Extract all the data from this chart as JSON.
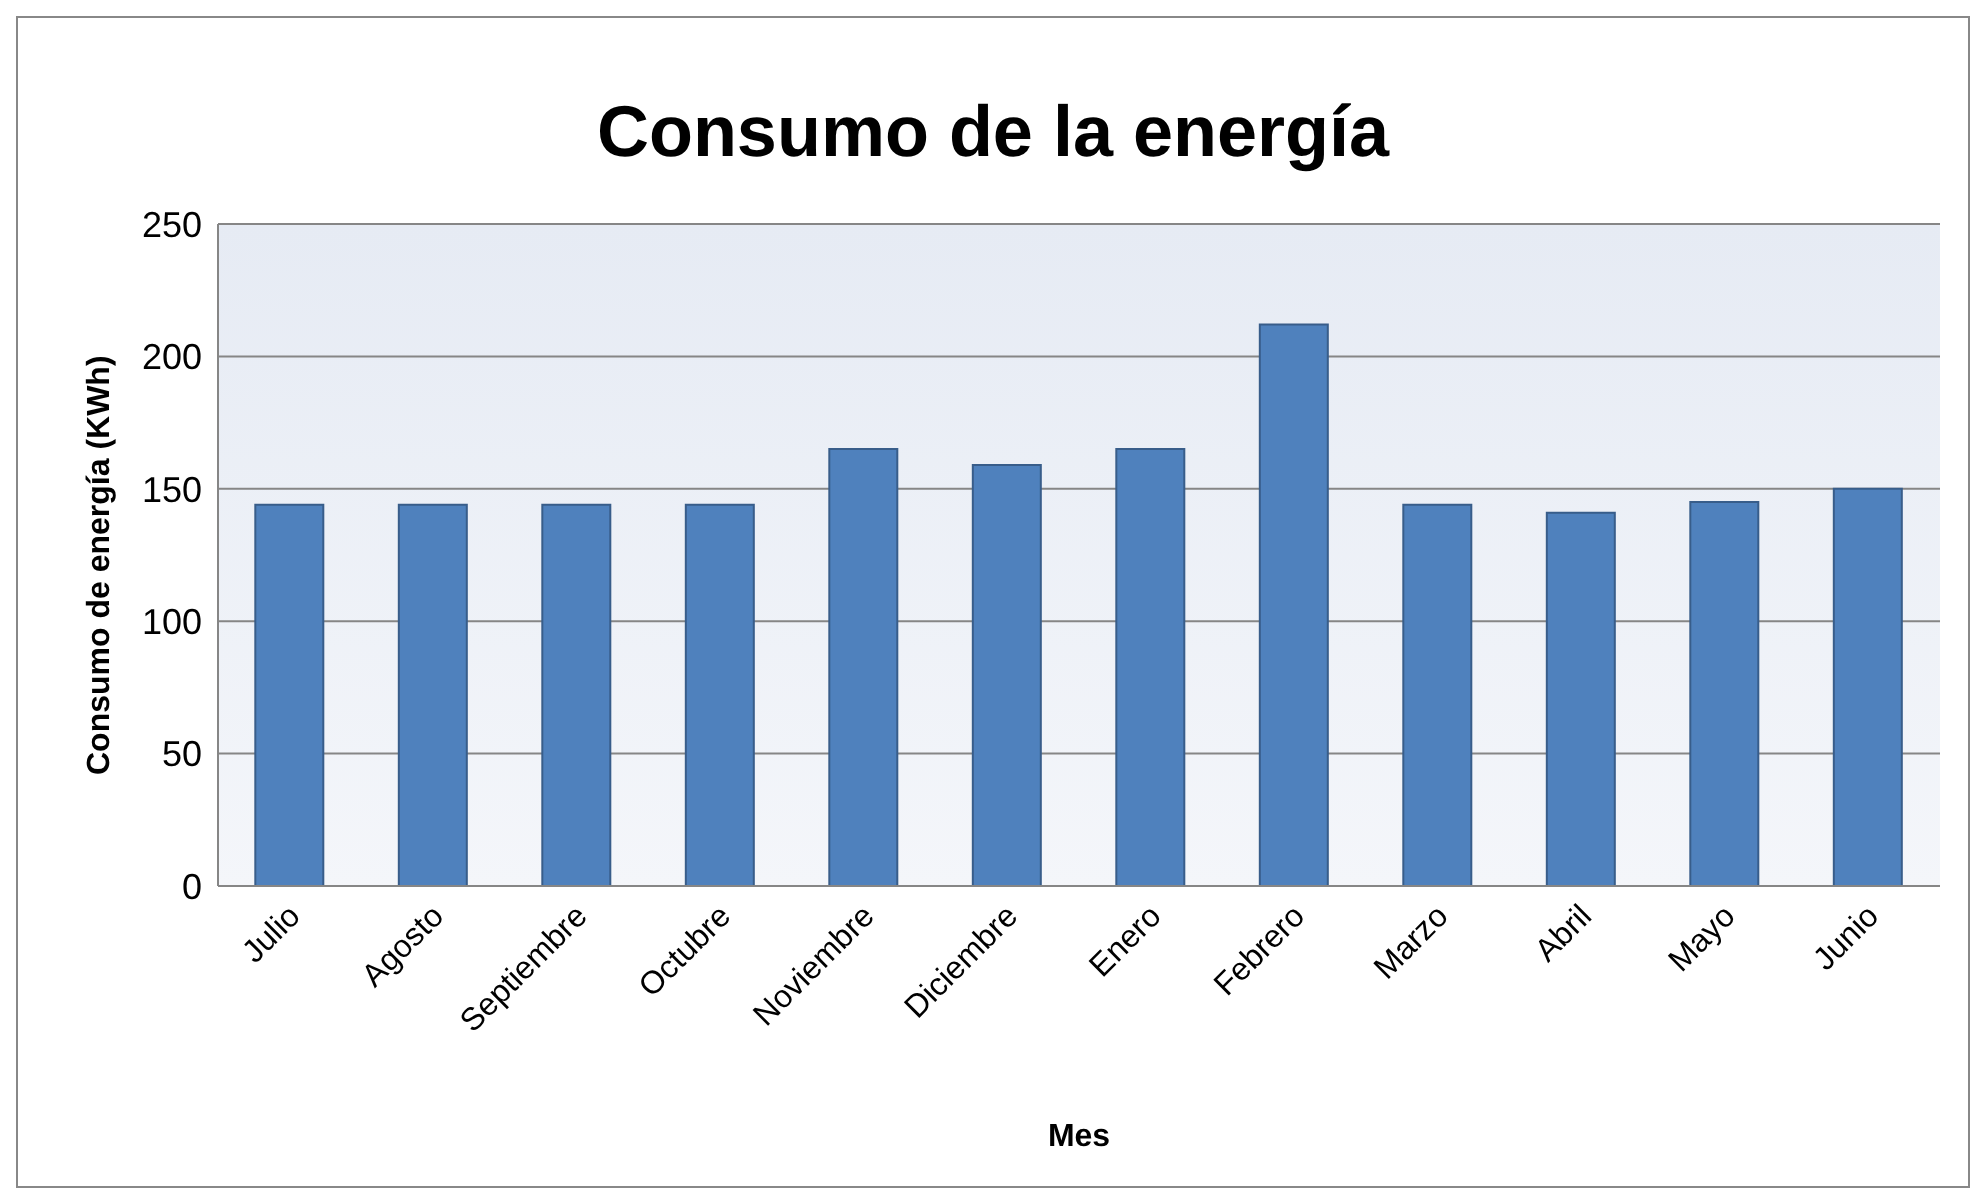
{
  "chart_data": {
    "type": "bar",
    "title": "Consumo de la energía",
    "xlabel": "Mes",
    "ylabel": "Consumo de energía (KWh)",
    "categories": [
      "Julio",
      "Agosto",
      "Septiembre",
      "Octubre",
      "Noviembre",
      "Diciembre",
      "Enero",
      "Febrero",
      "Marzo",
      "Abril",
      "Mayo",
      "Junio"
    ],
    "values": [
      144,
      144,
      144,
      144,
      165,
      159,
      165,
      212,
      144,
      141,
      145,
      150
    ],
    "color": "#4f81bd",
    "ylim": [
      0,
      250
    ],
    "yticks": [
      0,
      50,
      100,
      150,
      200,
      250
    ],
    "grid": "y",
    "legend": false
  }
}
